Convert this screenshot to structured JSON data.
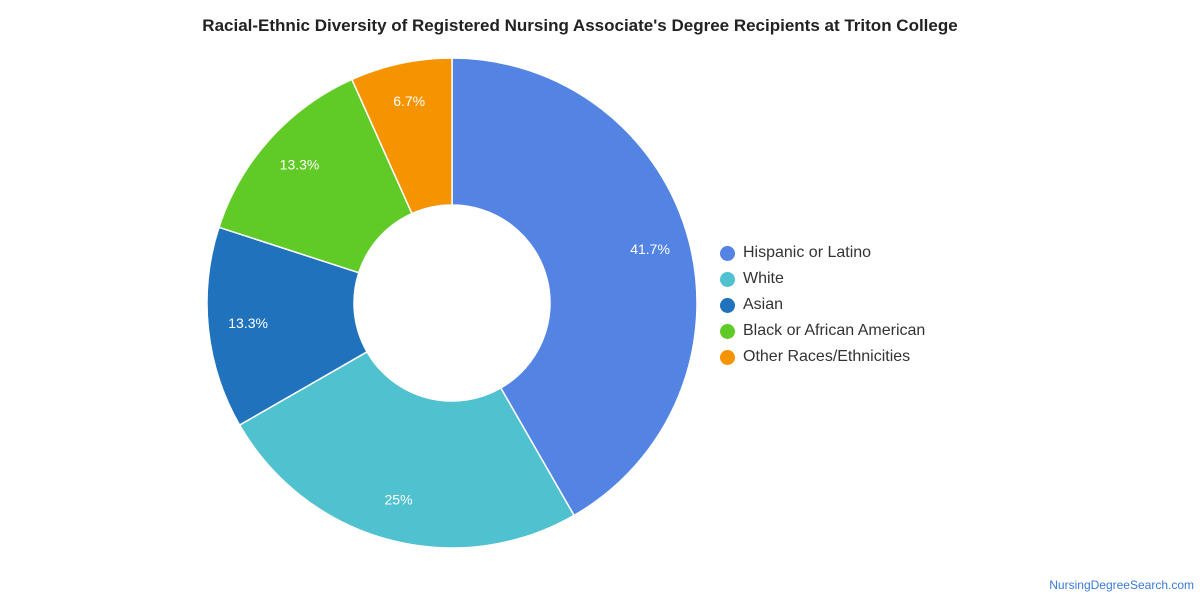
{
  "chart_data": {
    "type": "pie",
    "title": "Racial-Ethnic Diversity of Registered Nursing Associate's Degree Recipients at Triton College",
    "donut": true,
    "legend_position": "right",
    "slices": [
      {
        "label": "Hispanic or Latino",
        "value": 41.7,
        "display": "41.7%",
        "color": "#5384e3"
      },
      {
        "label": "White",
        "value": 25,
        "display": "25%",
        "color": "#50c1cf"
      },
      {
        "label": "Asian",
        "value": 13.3,
        "display": "13.3%",
        "color": "#1f72bb"
      },
      {
        "label": "Black or African American",
        "value": 13.3,
        "display": "13.3%",
        "color": "#60cb27"
      },
      {
        "label": "Other Races/Ethnicities",
        "value": 6.7,
        "display": "6.7%",
        "color": "#f59400"
      }
    ]
  },
  "credit": "NursingDegreeSearch.com"
}
